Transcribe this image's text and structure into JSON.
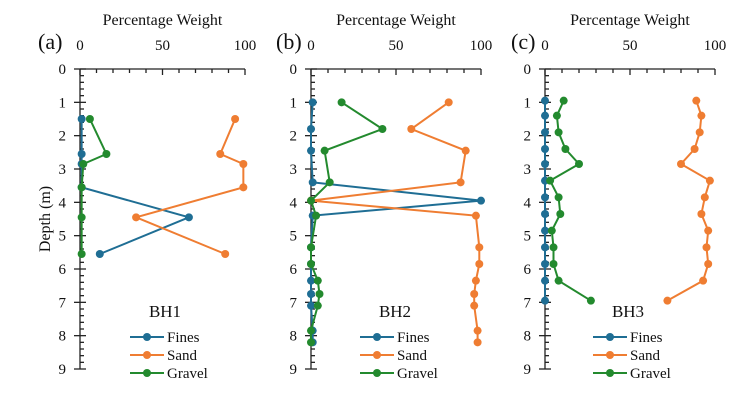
{
  "chart_data": [
    {
      "type": "line",
      "panel_label": "(a)",
      "title": "Percentage Weight",
      "xlabel": "Percentage Weight",
      "ylabel": "Depth (m)",
      "xlim": [
        0,
        100
      ],
      "ylim": [
        0,
        9
      ],
      "y_inverted": true,
      "x_ticks": [
        "0",
        "50",
        "100"
      ],
      "y_ticks": [
        "0",
        "1",
        "2",
        "3",
        "4",
        "5",
        "6",
        "7",
        "8",
        "9"
      ],
      "legend_title": "BH1",
      "legend_position": "bottom-center",
      "series": [
        {
          "name": "Fines",
          "color": "#1f6e94",
          "depth": [
            1.5,
            2.55,
            2.85,
            3.55,
            4.45,
            5.55
          ],
          "values": [
            1,
            1,
            1,
            1,
            66,
            12
          ]
        },
        {
          "name": "Sand",
          "color": "#ef7d32",
          "depth": [
            1.5,
            2.55,
            2.85,
            3.55,
            4.45,
            5.55
          ],
          "values": [
            94,
            85,
            99,
            99,
            34,
            88
          ]
        },
        {
          "name": "Gravel",
          "color": "#238a2e",
          "depth": [
            1.5,
            2.55,
            2.85,
            3.55,
            4.45,
            5.55
          ],
          "values": [
            6,
            16,
            2,
            1,
            1,
            1
          ]
        }
      ]
    },
    {
      "type": "line",
      "panel_label": "(b)",
      "title": "Percentage Weight",
      "xlabel": "Percentage Weight",
      "ylabel": "",
      "xlim": [
        0,
        100
      ],
      "ylim": [
        0,
        9
      ],
      "y_inverted": true,
      "x_ticks": [
        "0",
        "50",
        "100"
      ],
      "y_ticks": [
        "0",
        "1",
        "2",
        "3",
        "4",
        "5",
        "6",
        "7",
        "8",
        "9"
      ],
      "legend_title": "BH2",
      "legend_position": "bottom-center",
      "series": [
        {
          "name": "Fines",
          "color": "#1f6e94",
          "depth": [
            1.0,
            1.8,
            2.45,
            3.4,
            3.95,
            4.4,
            5.35,
            5.85,
            6.35,
            6.75,
            7.1,
            7.85,
            8.2
          ],
          "values": [
            1,
            0,
            0,
            1,
            100,
            1,
            0,
            0,
            0,
            0,
            0,
            1,
            1
          ]
        },
        {
          "name": "Sand",
          "color": "#ef7d32",
          "depth": [
            1.0,
            1.8,
            2.45,
            3.4,
            3.95,
            4.4,
            5.35,
            5.85,
            6.35,
            6.75,
            7.1,
            7.85,
            8.2
          ],
          "values": [
            81,
            59,
            91,
            88,
            0,
            97,
            99,
            99,
            97,
            96,
            96,
            98,
            98
          ]
        },
        {
          "name": "Gravel",
          "color": "#238a2e",
          "depth": [
            1.0,
            1.8,
            2.45,
            3.4,
            3.95,
            4.4,
            5.35,
            5.85,
            6.35,
            6.75,
            7.1,
            7.85,
            8.2
          ],
          "values": [
            18,
            42,
            8,
            11,
            0,
            3,
            0,
            0,
            4,
            5,
            4,
            0,
            0
          ]
        }
      ]
    },
    {
      "type": "line",
      "panel_label": "(c)",
      "title": "Percentage Weight",
      "xlabel": "Percentage Weight",
      "ylabel": "",
      "xlim": [
        0,
        100
      ],
      "ylim": [
        0,
        9
      ],
      "y_inverted": true,
      "x_ticks": [
        "0",
        "50",
        "100"
      ],
      "y_ticks": [
        "0",
        "1",
        "2",
        "3",
        "4",
        "5",
        "6",
        "7",
        "8",
        "9"
      ],
      "legend_title": "BH3",
      "legend_position": "bottom-center",
      "series": [
        {
          "name": "Fines",
          "color": "#1f6e94",
          "depth": [
            0.95,
            1.4,
            1.9,
            2.4,
            2.85,
            3.35,
            3.85,
            4.35,
            4.85,
            5.35,
            5.85,
            6.35,
            6.95
          ],
          "values": [
            0,
            0,
            0,
            0,
            0,
            0,
            0,
            0,
            0,
            0,
            0,
            0,
            0
          ]
        },
        {
          "name": "Sand",
          "color": "#ef7d32",
          "depth": [
            0.95,
            1.4,
            1.9,
            2.4,
            2.85,
            3.35,
            3.85,
            4.35,
            4.85,
            5.35,
            5.85,
            6.35,
            6.95
          ],
          "values": [
            89,
            92,
            91,
            88,
            80,
            97,
            94,
            92,
            96,
            95,
            96,
            93,
            72
          ]
        },
        {
          "name": "Gravel",
          "color": "#238a2e",
          "depth": [
            0.95,
            1.4,
            1.9,
            2.4,
            2.85,
            3.35,
            3.85,
            4.35,
            4.85,
            5.35,
            5.85,
            6.35,
            6.95
          ],
          "values": [
            11,
            7,
            8,
            12,
            20,
            3,
            8,
            9,
            4,
            5,
            5,
            8,
            27
          ]
        }
      ]
    }
  ]
}
